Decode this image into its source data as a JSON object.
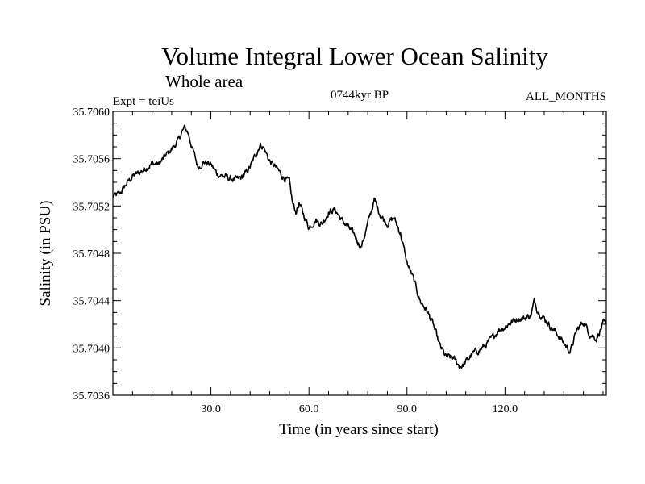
{
  "chart_data": {
    "type": "line",
    "title": "Volume Integral Lower Ocean Salinity",
    "subtitle": "Whole area",
    "experiment": "Expt = teiUs",
    "period": "0744kyr BP",
    "months": "ALL_MONTHS",
    "xlabel": "Time (in years since start)",
    "ylabel": "Salinity (in PSU)",
    "xlim": [
      0,
      151
    ],
    "ylim": [
      35.7036,
      35.706
    ],
    "xticks": [
      30,
      60,
      90,
      120
    ],
    "xtick_labels": [
      "30.0",
      "60.0",
      "90.0",
      "120.0"
    ],
    "yticks": [
      35.7036,
      35.704,
      35.7044,
      35.7048,
      35.7052,
      35.7056,
      35.706
    ],
    "ytick_labels": [
      "35.7036",
      "35.7040",
      "35.7044",
      "35.7048",
      "35.7052",
      "35.7056",
      "35.7060"
    ],
    "grid": false,
    "series": [
      {
        "name": "salinity",
        "x": [
          0,
          2,
          4,
          6,
          8,
          10,
          12,
          14,
          16,
          18,
          20,
          21,
          22,
          23,
          24,
          26,
          28,
          30,
          32,
          34,
          36,
          38,
          40,
          42,
          44,
          45,
          46,
          48,
          50,
          52,
          54,
          55,
          56,
          57,
          58,
          60,
          62,
          64,
          66,
          68,
          70,
          72,
          74,
          76,
          78,
          80,
          82,
          84,
          86,
          88,
          90,
          92,
          94,
          96,
          98,
          100,
          102,
          104,
          106,
          107,
          108,
          110,
          112,
          114,
          116,
          118,
          120,
          122,
          124,
          126,
          128,
          129,
          130,
          132,
          134,
          136,
          138,
          140,
          142,
          144,
          146,
          148,
          150,
          151
        ],
        "values": [
          35.70528,
          35.7053,
          35.70538,
          35.70545,
          35.70548,
          35.70552,
          35.70556,
          35.70555,
          35.70562,
          35.70568,
          35.70575,
          35.70582,
          35.70586,
          35.70582,
          35.70572,
          35.70553,
          35.70557,
          35.70555,
          35.70547,
          35.70545,
          35.70543,
          35.70542,
          35.70545,
          35.70553,
          35.70565,
          35.70572,
          35.7057,
          35.70558,
          35.70552,
          35.70545,
          35.7054,
          35.70522,
          35.70515,
          35.70522,
          35.70515,
          35.70502,
          35.70508,
          35.70505,
          35.70515,
          35.70517,
          35.70508,
          35.70502,
          35.70495,
          35.70485,
          35.70505,
          35.70525,
          35.70512,
          35.70505,
          35.7051,
          35.70497,
          35.70472,
          35.70458,
          35.7044,
          35.70432,
          35.7042,
          35.70402,
          35.70392,
          35.70392,
          35.70385,
          35.70385,
          35.70388,
          35.70395,
          35.70398,
          35.70402,
          35.70408,
          35.70415,
          35.70418,
          35.70422,
          35.70425,
          35.70425,
          35.70428,
          35.7044,
          35.70432,
          35.70425,
          35.70418,
          35.70412,
          35.70404,
          35.70397,
          35.70415,
          35.70422,
          35.70412,
          35.70408,
          35.7042,
          35.7042
        ]
      }
    ]
  }
}
